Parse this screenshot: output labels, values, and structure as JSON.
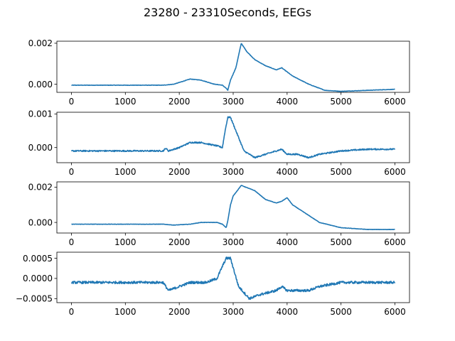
{
  "chart_data": {
    "type": "line",
    "title": "23280 - 23310Seconds, EEGs",
    "color": "#1f77b4",
    "x_range": [
      0,
      6000
    ],
    "x_ticks": [
      0,
      1000,
      2000,
      3000,
      4000,
      5000,
      6000
    ],
    "x_tick_labels": [
      "0",
      "1000",
      "2000",
      "3000",
      "4000",
      "5000",
      "6000"
    ],
    "subplots": [
      {
        "ylim": [
          -0.0004,
          0.0021
        ],
        "y_ticks": [
          0.0,
          0.002
        ],
        "y_tick_labels": [
          "0.000",
          "0.002"
        ],
        "noise": 1e-05,
        "x": [
          0,
          1000,
          1700,
          1900,
          2200,
          2400,
          2650,
          2800,
          2870,
          2900,
          2950,
          3050,
          3150,
          3250,
          3400,
          3600,
          3800,
          3900,
          4000,
          4100,
          4400,
          4700,
          5000,
          5500,
          6000
        ],
        "y": [
          -5e-05,
          -5e-05,
          -5e-05,
          0.0,
          0.00025,
          0.0002,
          0.0,
          -5e-05,
          -0.0002,
          -0.0003,
          0.0002,
          0.0008,
          0.002,
          0.0016,
          0.0012,
          0.0009,
          0.0007,
          0.0008,
          0.0006,
          0.0004,
          0.0,
          -0.0003,
          -0.00035,
          -0.0003,
          -0.00025
        ]
      },
      {
        "ylim": [
          -0.00045,
          0.00105
        ],
        "y_ticks": [
          0.0,
          0.001
        ],
        "y_tick_labels": [
          "0.000",
          "0.001"
        ],
        "noise": 2e-05,
        "x": [
          0,
          1000,
          1700,
          1750,
          1800,
          2000,
          2200,
          2400,
          2700,
          2800,
          2850,
          2900,
          2950,
          3100,
          3200,
          3400,
          3700,
          3900,
          4000,
          4200,
          4400,
          4600,
          5000,
          5500,
          6000
        ],
        "y": [
          -0.0001,
          -0.0001,
          -0.0001,
          -2e-05,
          -0.0001,
          0.0,
          0.00015,
          0.00015,
          5e-05,
          0.0,
          0.0005,
          0.0009,
          0.0009,
          0.0003,
          -0.0001,
          -0.0003,
          -0.00015,
          -5e-05,
          -0.0002,
          -0.0002,
          -0.0003,
          -0.0002,
          -0.0001,
          -5e-05,
          -5e-05
        ]
      },
      {
        "ylim": [
          -0.0006,
          0.0023
        ],
        "y_ticks": [
          0.0,
          0.002
        ],
        "y_tick_labels": [
          "0.000",
          "0.002"
        ],
        "noise": 1e-05,
        "x": [
          0,
          1000,
          1700,
          1900,
          2200,
          2400,
          2700,
          2800,
          2870,
          2900,
          2950,
          3000,
          3150,
          3400,
          3600,
          3800,
          3900,
          4000,
          4100,
          4300,
          4600,
          5000,
          5500,
          6000
        ],
        "y": [
          -0.0001,
          -0.0001,
          -0.0001,
          -0.00015,
          -0.0001,
          0.0,
          0.0,
          -0.0001,
          -0.0003,
          0.0001,
          0.001,
          0.0015,
          0.0021,
          0.0018,
          0.0013,
          0.0011,
          0.0012,
          0.0014,
          0.001,
          0.0006,
          0.0,
          -0.0003,
          -0.0004,
          -0.0004
        ]
      },
      {
        "ylim": [
          -0.0006,
          0.00065
        ],
        "y_ticks": [
          -0.0005,
          0.0,
          0.0005
        ],
        "y_tick_labels": [
          "−0.0005",
          "0.0000",
          "0.0005"
        ],
        "noise": 3e-05,
        "x": [
          0,
          1000,
          1400,
          1700,
          1800,
          2000,
          2200,
          2500,
          2700,
          2800,
          2870,
          2950,
          3100,
          3300,
          3500,
          3800,
          3900,
          4000,
          4100,
          4400,
          4600,
          5000,
          5500,
          6000
        ],
        "y": [
          -0.0001,
          -0.0001,
          -0.0001,
          -0.0001,
          -0.0003,
          -0.0002,
          -0.0001,
          -0.0001,
          0.0,
          0.0003,
          0.0005,
          0.0005,
          -0.0002,
          -0.0005,
          -0.0004,
          -0.0003,
          -0.0002,
          -0.0003,
          -0.0003,
          -0.0003,
          -0.0002,
          -0.0001,
          -0.0001,
          -0.0001
        ]
      }
    ]
  }
}
